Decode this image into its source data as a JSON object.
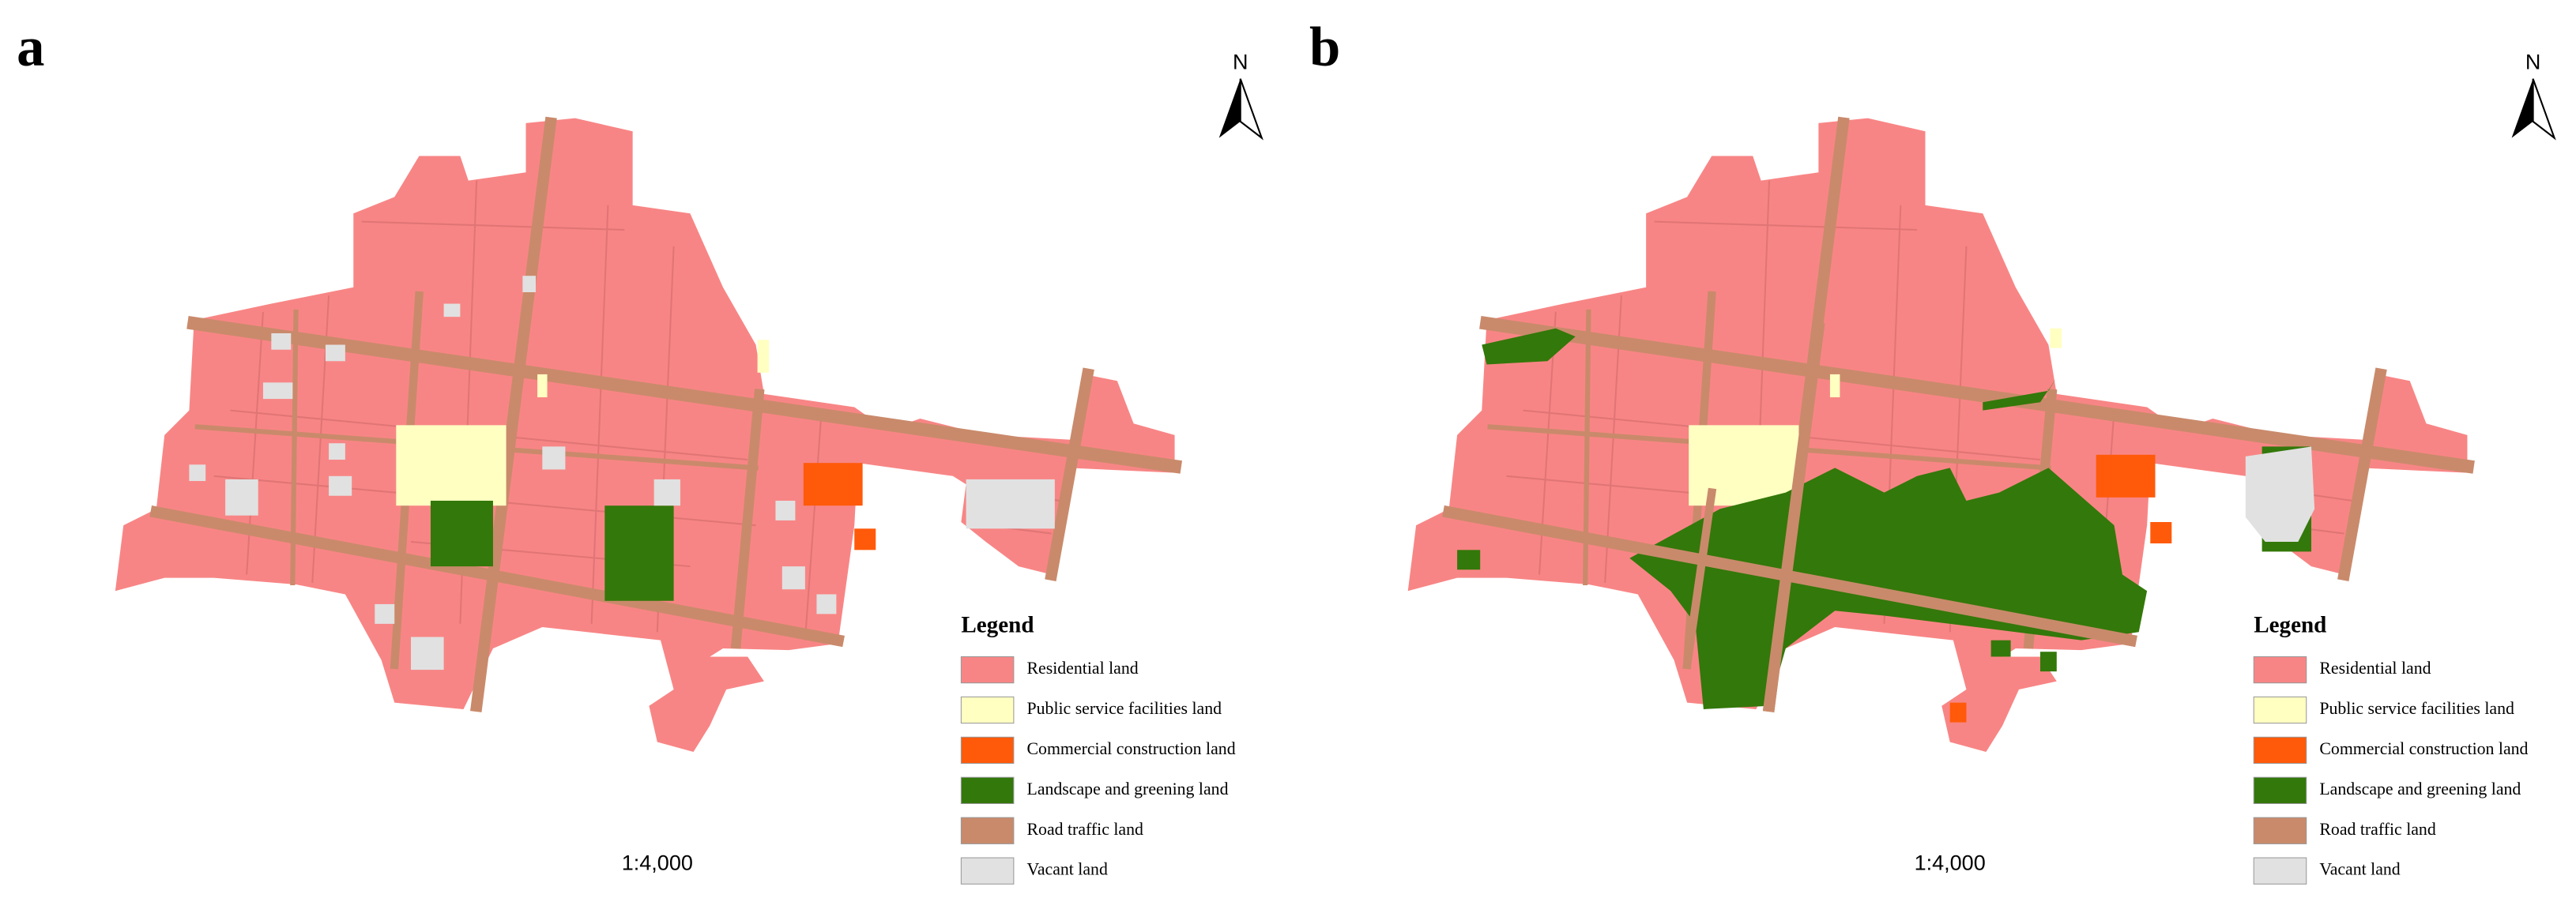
{
  "panels": [
    {
      "label": "a",
      "north": "N",
      "scale": "1:4,000",
      "legend": {
        "title": "Legend",
        "items": [
          {
            "label": "Residential land",
            "color": "#f88585"
          },
          {
            "label": "Public service facilities land",
            "color": "#ffffc2"
          },
          {
            "label": "Commercial construction land",
            "color": "#ff5a0a"
          },
          {
            "label": "Landscape and greening land",
            "color": "#33780a"
          },
          {
            "label": "Road traffic land",
            "color": "#c98a6b"
          },
          {
            "label": "Vacant land",
            "color": "#e1e1e1"
          }
        ]
      }
    },
    {
      "label": "b",
      "north": "N",
      "scale": "1:4,000",
      "legend": {
        "title": "Legend",
        "items": [
          {
            "label": "Residential land",
            "color": "#f88585"
          },
          {
            "label": "Public service facilities land",
            "color": "#ffffc2"
          },
          {
            "label": "Commercial construction land",
            "color": "#ff5a0a"
          },
          {
            "label": "Landscape and greening land",
            "color": "#33780a"
          },
          {
            "label": "Road traffic land",
            "color": "#c98a6b"
          },
          {
            "label": "Vacant land",
            "color": "#e1e1e1"
          }
        ]
      }
    }
  ]
}
